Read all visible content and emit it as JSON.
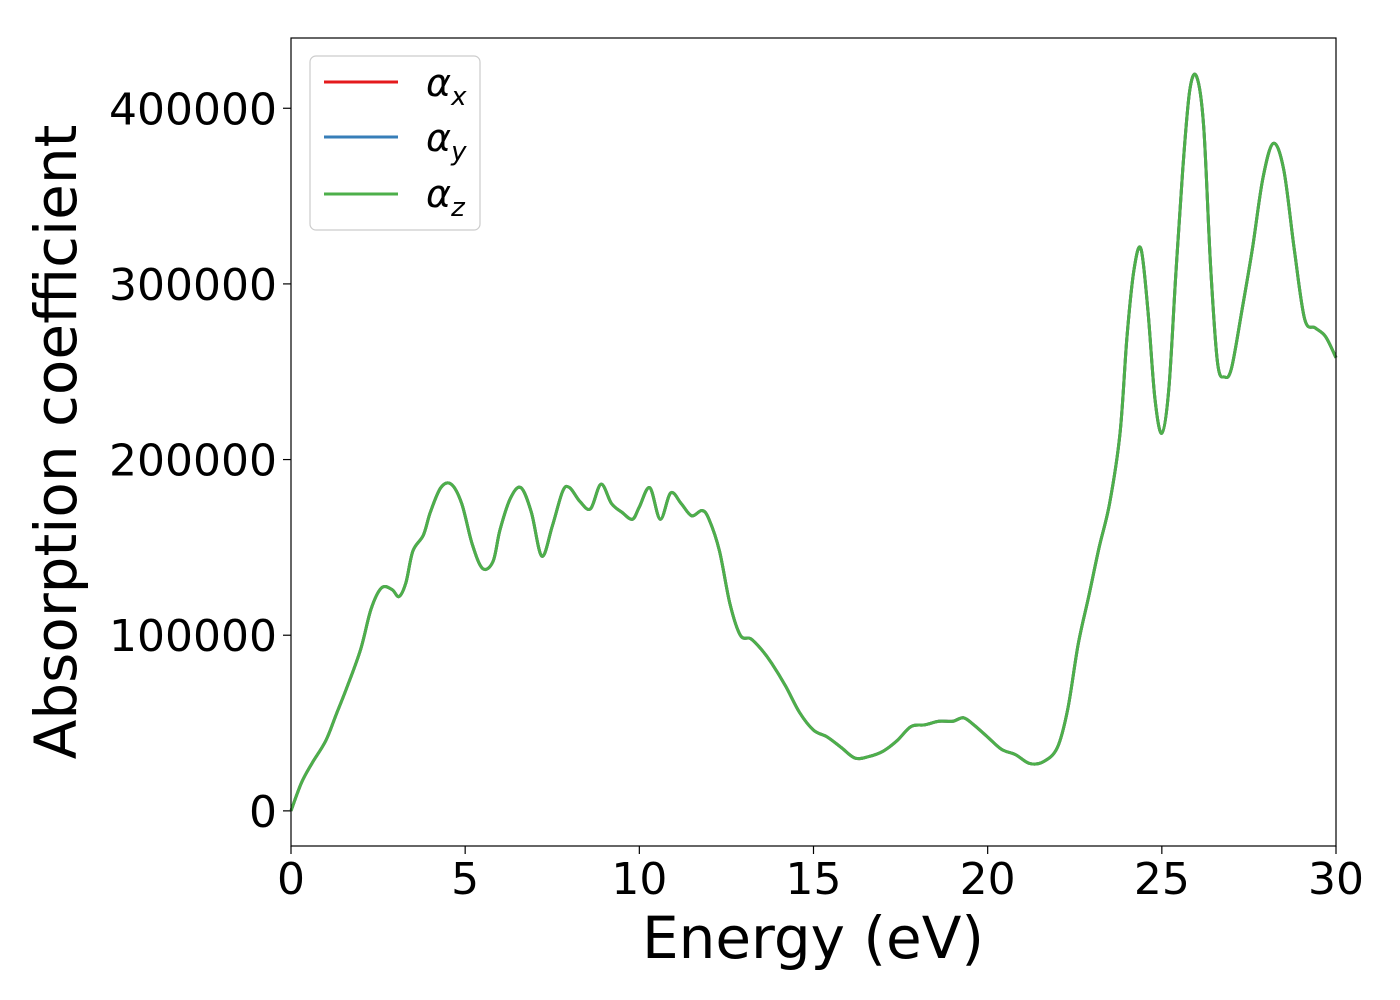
{
  "chart_data": {
    "type": "line",
    "xlabel": "Energy (eV)",
    "ylabel": "Absorption coefficient",
    "xlim": [
      0,
      30
    ],
    "ylim": [
      -20000,
      440000
    ],
    "xticks": [
      0,
      5,
      10,
      15,
      20,
      25,
      30
    ],
    "yticks": [
      0,
      100000,
      200000,
      300000,
      400000
    ],
    "grid": false,
    "legend_position": "top-left",
    "colors": {
      "alpha_x": "#e41a1c",
      "alpha_y": "#377eb8",
      "alpha_z": "#4daf4a"
    },
    "legend": [
      {
        "symbol": "α",
        "sub": "x"
      },
      {
        "symbol": "α",
        "sub": "y"
      },
      {
        "symbol": "α",
        "sub": "z"
      }
    ],
    "x": [
      0,
      0.3,
      0.6,
      1.0,
      1.3,
      1.6,
      2.0,
      2.3,
      2.6,
      2.9,
      3.1,
      3.3,
      3.5,
      3.8,
      4.0,
      4.3,
      4.6,
      4.9,
      5.2,
      5.5,
      5.8,
      6.0,
      6.3,
      6.6,
      6.9,
      7.2,
      7.5,
      7.8,
      8.0,
      8.3,
      8.6,
      8.9,
      9.2,
      9.5,
      9.8,
      10.0,
      10.3,
      10.6,
      10.9,
      11.2,
      11.5,
      11.8,
      12.0,
      12.3,
      12.6,
      12.9,
      13.2,
      13.5,
      13.8,
      14.2,
      14.6,
      15.0,
      15.4,
      15.8,
      16.2,
      16.6,
      17.0,
      17.4,
      17.8,
      18.2,
      18.6,
      19.0,
      19.3,
      19.6,
      20.0,
      20.4,
      20.8,
      21.2,
      21.6,
      22.0,
      22.3,
      22.6,
      22.9,
      23.2,
      23.5,
      23.8,
      24.0,
      24.2,
      24.4,
      24.6,
      24.8,
      25.0,
      25.2,
      25.4,
      25.6,
      25.8,
      26.0,
      26.2,
      26.4,
      26.6,
      26.8,
      27.0,
      27.3,
      27.6,
      27.9,
      28.2,
      28.5,
      28.8,
      29.1,
      29.4,
      29.7,
      30.0
    ],
    "series": [
      {
        "name": "alpha_x",
        "color": "#e41a1c",
        "values": [
          0,
          16000,
          27000,
          40000,
          55000,
          70000,
          92000,
          115000,
          127000,
          126000,
          122000,
          130000,
          148000,
          157000,
          170000,
          184000,
          186000,
          175000,
          152000,
          138000,
          142000,
          160000,
          178000,
          184000,
          170000,
          145000,
          162000,
          182000,
          184000,
          176000,
          172000,
          186000,
          175000,
          170000,
          166000,
          173000,
          184000,
          166000,
          181000,
          175000,
          168000,
          171000,
          166000,
          148000,
          118000,
          100000,
          98000,
          92000,
          84000,
          71000,
          56000,
          46000,
          42000,
          36000,
          30000,
          31000,
          34000,
          40000,
          48000,
          49000,
          51000,
          51000,
          53000,
          49000,
          42000,
          35000,
          32000,
          27000,
          28000,
          36000,
          58000,
          95000,
          122000,
          150000,
          175000,
          215000,
          270000,
          308000,
          320000,
          285000,
          235000,
          215000,
          240000,
          305000,
          365000,
          410000,
          418000,
          390000,
          310000,
          255000,
          247000,
          252000,
          285000,
          320000,
          360000,
          380000,
          365000,
          320000,
          280000,
          275000,
          270000,
          258000
        ]
      },
      {
        "name": "alpha_y",
        "color": "#377eb8",
        "values": [
          0,
          16000,
          27000,
          40000,
          55000,
          70000,
          92000,
          115000,
          127000,
          126000,
          122000,
          130000,
          148000,
          157000,
          170000,
          184000,
          186000,
          175000,
          152000,
          138000,
          142000,
          160000,
          178000,
          184000,
          170000,
          145000,
          162000,
          182000,
          184000,
          176000,
          172000,
          186000,
          175000,
          170000,
          166000,
          173000,
          184000,
          166000,
          181000,
          175000,
          168000,
          171000,
          166000,
          148000,
          118000,
          100000,
          98000,
          92000,
          84000,
          71000,
          56000,
          46000,
          42000,
          36000,
          30000,
          31000,
          34000,
          40000,
          48000,
          49000,
          51000,
          51000,
          53000,
          49000,
          42000,
          35000,
          32000,
          27000,
          28000,
          36000,
          58000,
          95000,
          122000,
          150000,
          175000,
          215000,
          270000,
          308000,
          320000,
          285000,
          235000,
          215000,
          240000,
          305000,
          365000,
          410000,
          418000,
          390000,
          310000,
          255000,
          247000,
          252000,
          285000,
          320000,
          360000,
          380000,
          365000,
          320000,
          280000,
          275000,
          270000,
          258000
        ]
      },
      {
        "name": "alpha_z",
        "color": "#4daf4a",
        "values": [
          0,
          16000,
          27000,
          40000,
          55000,
          70000,
          92000,
          115000,
          127000,
          126000,
          122000,
          130000,
          148000,
          157000,
          170000,
          184000,
          186000,
          175000,
          152000,
          138000,
          142000,
          160000,
          178000,
          184000,
          170000,
          145000,
          162000,
          182000,
          184000,
          176000,
          172000,
          186000,
          175000,
          170000,
          166000,
          173000,
          184000,
          166000,
          181000,
          175000,
          168000,
          171000,
          166000,
          148000,
          118000,
          100000,
          98000,
          92000,
          84000,
          71000,
          56000,
          46000,
          42000,
          36000,
          30000,
          31000,
          34000,
          40000,
          48000,
          49000,
          51000,
          51000,
          53000,
          49000,
          42000,
          35000,
          32000,
          27000,
          28000,
          36000,
          58000,
          95000,
          122000,
          150000,
          175000,
          215000,
          270000,
          308000,
          320000,
          285000,
          235000,
          215000,
          240000,
          305000,
          365000,
          410000,
          418000,
          390000,
          310000,
          255000,
          247000,
          252000,
          285000,
          320000,
          360000,
          380000,
          365000,
          320000,
          280000,
          275000,
          270000,
          258000
        ]
      }
    ]
  }
}
